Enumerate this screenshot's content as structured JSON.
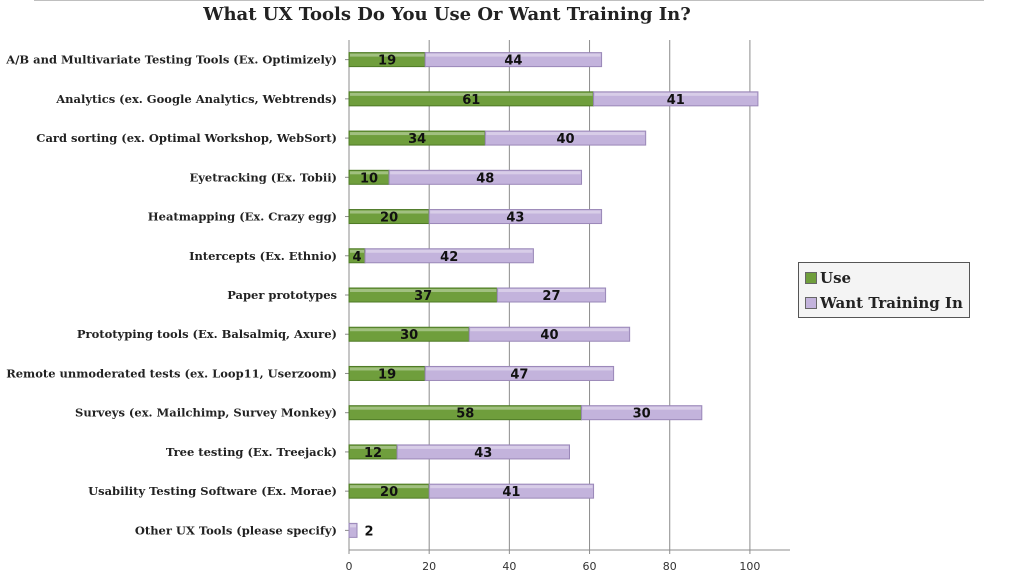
{
  "chart_data": {
    "type": "bar",
    "orientation": "horizontal",
    "stacked": true,
    "title": "What UX Tools Do You Use Or Want Training In?",
    "xlabel": "",
    "ylabel": "",
    "xlim": [
      0,
      110
    ],
    "x_ticks": [
      0,
      20,
      40,
      60,
      80,
      100
    ],
    "grid": "vertical major gridlines",
    "legend_position": "right",
    "categories": [
      "A/B and Multivariate Testing Tools (Ex. Optimizely)",
      "Analytics (ex. Google Analytics, Webtrends)",
      "Card sorting (ex. Optimal Workshop, WebSort)",
      "Eyetracking (Ex. Tobii)",
      "Heatmapping (Ex. Crazy egg)",
      "Intercepts (Ex. Ethnio)",
      "Paper prototypes",
      "Prototyping tools (Ex. Balsalmiq, Axure)",
      "Remote unmoderated tests (ex. Loop11, Userzoom)",
      "Surveys (ex. Mailchimp, Survey Monkey)",
      "Tree testing (Ex. Treejack)",
      "Usability Testing Software (Ex. Morae)",
      "Other UX Tools (please specify)"
    ],
    "series": [
      {
        "name": "Use",
        "color": "#6f9e3c",
        "values": [
          19,
          61,
          34,
          10,
          20,
          4,
          37,
          30,
          19,
          58,
          12,
          20,
          null
        ]
      },
      {
        "name": "Want Training In",
        "color": "#c3b3dc",
        "values": [
          44,
          41,
          40,
          48,
          43,
          42,
          27,
          40,
          47,
          30,
          43,
          41,
          2
        ]
      }
    ]
  },
  "legend": {
    "items": [
      {
        "label": "Use",
        "color": "#6f9e3c"
      },
      {
        "label": "Want Training In",
        "color": "#c3b3dc"
      }
    ]
  }
}
